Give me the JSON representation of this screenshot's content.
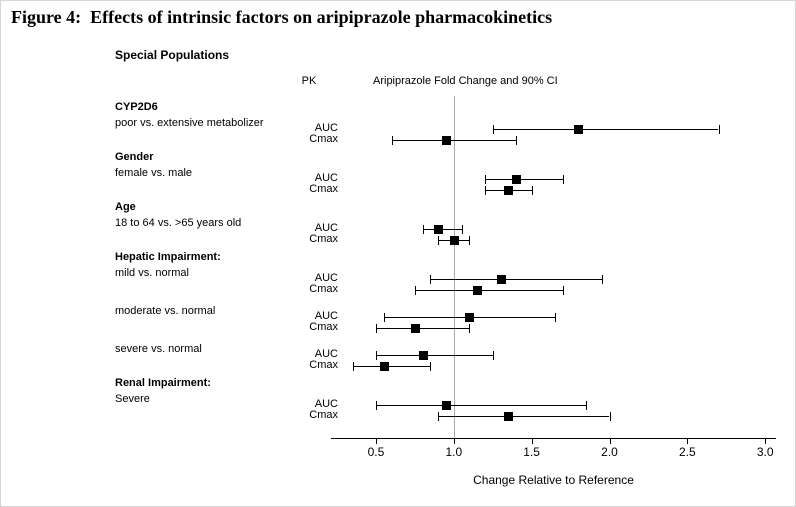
{
  "figure": {
    "title": "Figure 4:  Effects of intrinsic factors on aripiprazole pharmacokinetics",
    "subtitle": "Special Populations",
    "pk_header": "PK",
    "ci_header": "Aripiprazole Fold Change and 90% CI",
    "xlabel": "Change Relative to Reference"
  },
  "chart_data": {
    "type": "forest",
    "title": "Aripiprazole Fold Change and 90% CI",
    "xlabel": "Change Relative to Reference",
    "x_range": [
      0.25,
      3.05
    ],
    "reference_line": 1.0,
    "x_ticks": [
      {
        "value": 0.5,
        "label": "0.5"
      },
      {
        "value": 1.0,
        "label": "1.0"
      },
      {
        "value": 1.5,
        "label": "1.5"
      },
      {
        "value": 2.0,
        "label": "2.0"
      },
      {
        "value": 2.5,
        "label": "2.5"
      },
      {
        "value": 3.0,
        "label": "3.0"
      }
    ],
    "groups": [
      {
        "header": "CYP2D6",
        "comparison": "poor vs. extensive metabolizer",
        "rows": [
          {
            "pk": "AUC",
            "estimate": 1.8,
            "ci_low": 1.25,
            "ci_high": 2.7
          },
          {
            "pk": "Cmax",
            "estimate": 0.95,
            "ci_low": 0.6,
            "ci_high": 1.4
          }
        ]
      },
      {
        "header": "Gender",
        "comparison": "female vs. male",
        "rows": [
          {
            "pk": "AUC",
            "estimate": 1.4,
            "ci_low": 1.2,
            "ci_high": 1.7
          },
          {
            "pk": "Cmax",
            "estimate": 1.35,
            "ci_low": 1.2,
            "ci_high": 1.5
          }
        ]
      },
      {
        "header": "Age",
        "comparison": "18 to 64 vs. >65 years old",
        "rows": [
          {
            "pk": "AUC",
            "estimate": 0.9,
            "ci_low": 0.8,
            "ci_high": 1.05
          },
          {
            "pk": "Cmax",
            "estimate": 1.0,
            "ci_low": 0.9,
            "ci_high": 1.1
          }
        ]
      },
      {
        "header": "Hepatic Impairment:",
        "comparison": "mild vs. normal",
        "rows": [
          {
            "pk": "AUC",
            "estimate": 1.3,
            "ci_low": 0.85,
            "ci_high": 1.95
          },
          {
            "pk": "Cmax",
            "estimate": 1.15,
            "ci_low": 0.75,
            "ci_high": 1.7
          }
        ]
      },
      {
        "header": "",
        "comparison": "moderate vs. normal",
        "rows": [
          {
            "pk": "AUC",
            "estimate": 1.1,
            "ci_low": 0.55,
            "ci_high": 1.65
          },
          {
            "pk": "Cmax",
            "estimate": 0.75,
            "ci_low": 0.5,
            "ci_high": 1.1
          }
        ]
      },
      {
        "header": "",
        "comparison": "severe vs. normal",
        "rows": [
          {
            "pk": "AUC",
            "estimate": 0.8,
            "ci_low": 0.5,
            "ci_high": 1.25
          },
          {
            "pk": "Cmax",
            "estimate": 0.55,
            "ci_low": 0.35,
            "ci_high": 0.85
          }
        ]
      },
      {
        "header": "Renal Impairment:",
        "comparison": "Severe",
        "rows": [
          {
            "pk": "AUC",
            "estimate": 0.95,
            "ci_low": 0.5,
            "ci_high": 1.85
          },
          {
            "pk": "Cmax",
            "estimate": 1.35,
            "ci_low": 0.9,
            "ci_high": 2.0
          }
        ]
      }
    ]
  }
}
